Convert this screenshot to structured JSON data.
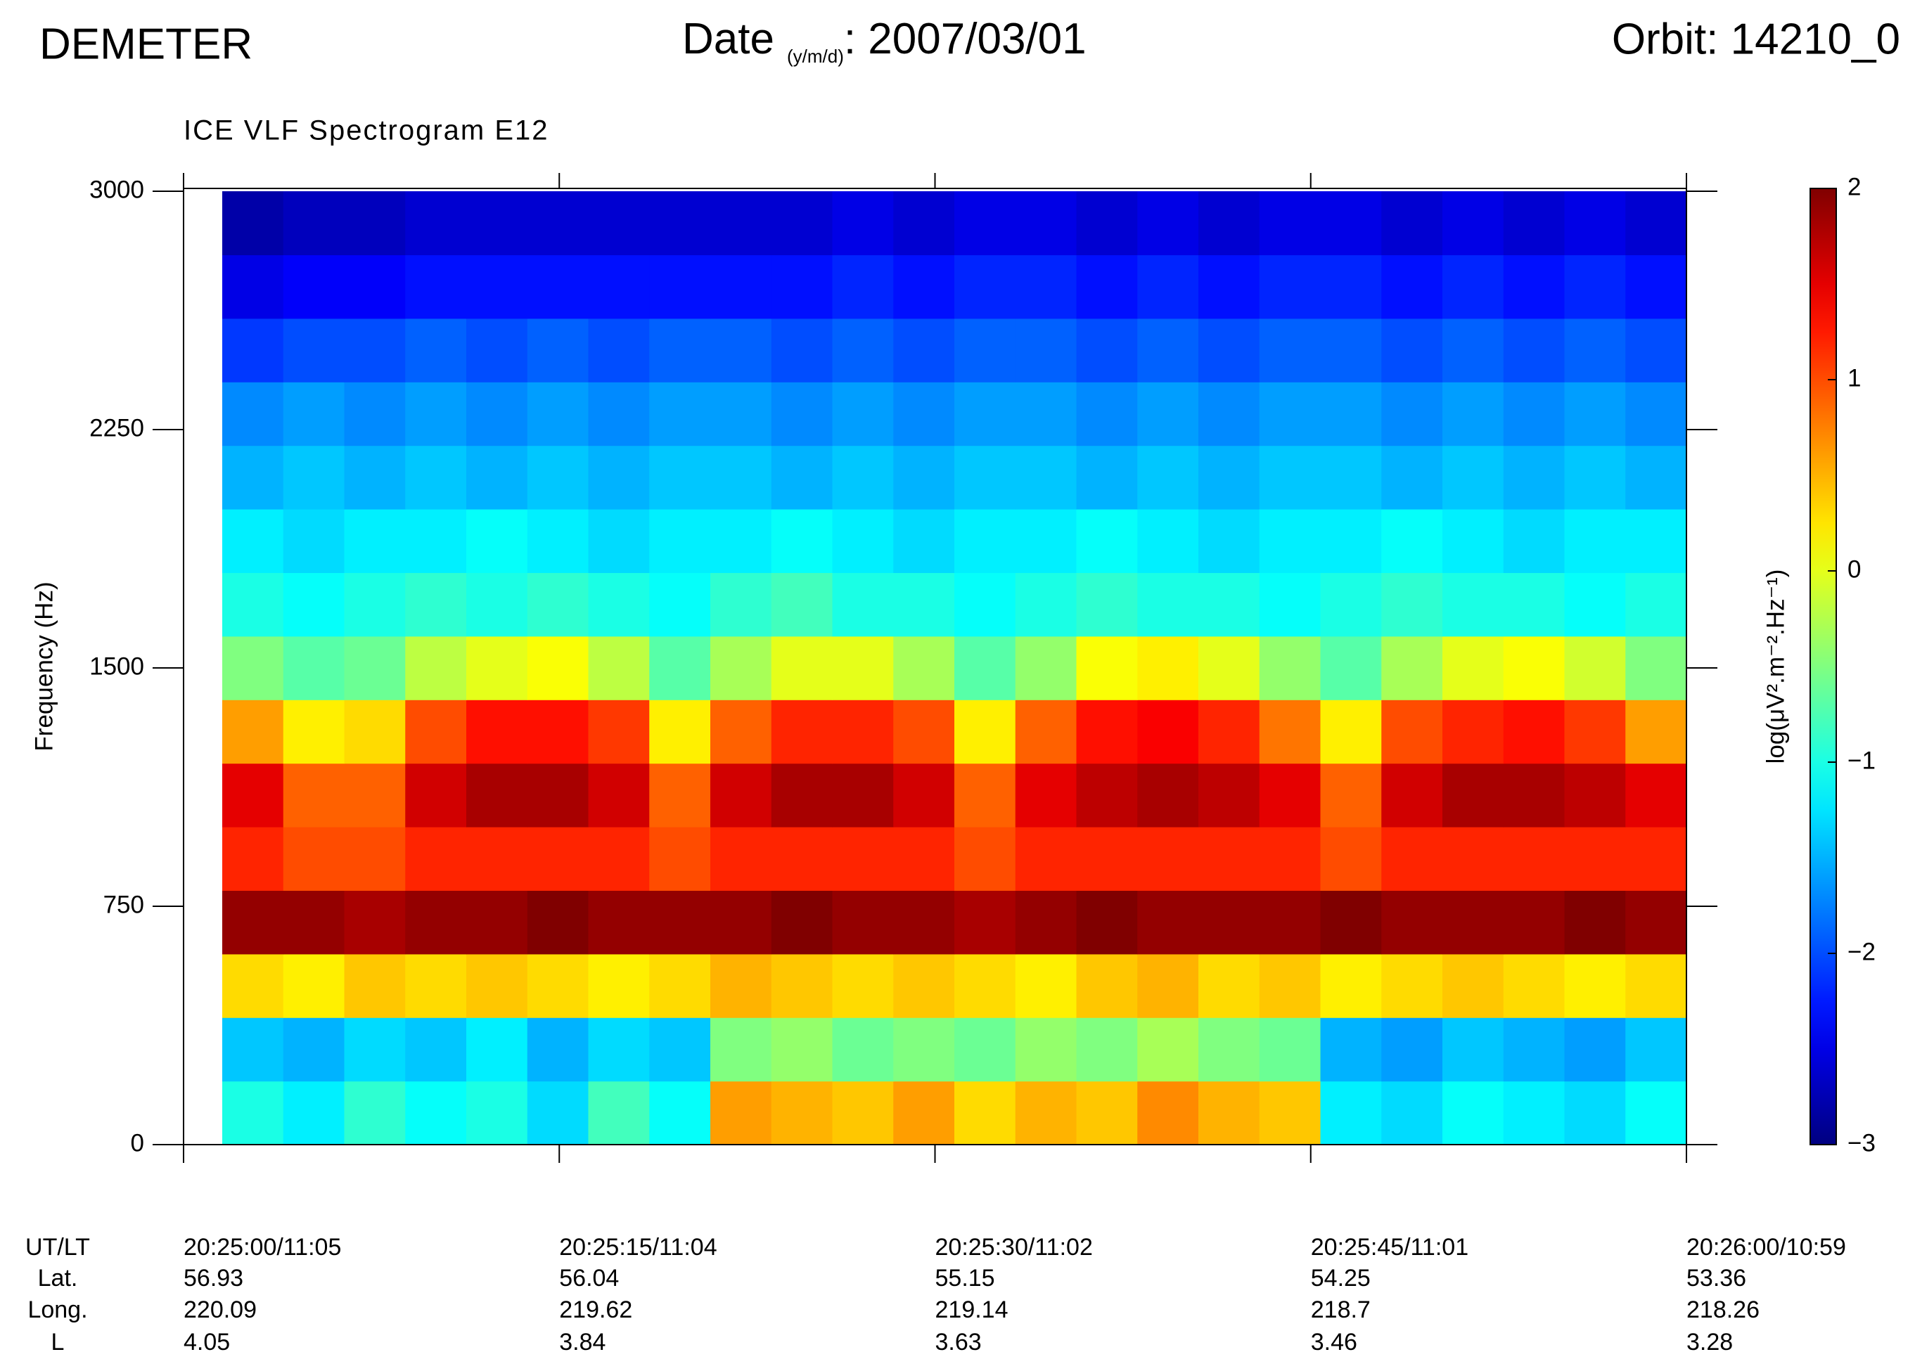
{
  "header": {
    "left": "DEMETER",
    "date_label": "Date",
    "date_units": "(y/m/d)",
    "date_value": ": 2007/03/01",
    "orbit": "Orbit: 14210_0"
  },
  "chart_data": {
    "type": "heatmap",
    "title": "ICE VLF Spectrogram E12",
    "ylabel": "Frequency (Hz)",
    "ylim": [
      0,
      3000
    ],
    "yticks": [
      0,
      750,
      1500,
      2250,
      3000
    ],
    "colorbar": {
      "label": "log(μV².m⁻².Hz⁻¹)",
      "lim": [
        -3,
        2
      ],
      "colormap": "jet",
      "ticks": [
        {
          "value": -3,
          "label": "−3"
        },
        {
          "value": -2,
          "label": "−2"
        },
        {
          "value": -1,
          "label": "−1"
        },
        0,
        1,
        2
      ]
    },
    "x_table": {
      "row_labels": [
        "UT/LT",
        "Lat.",
        "Long.",
        "L"
      ],
      "rows": [
        [
          "20:25:00/11:05",
          "20:25:15/11:04",
          "20:25:30/11:02",
          "20:25:45/11:01",
          "20:26:00/10:59"
        ],
        [
          56.93,
          56.04,
          55.15,
          54.25,
          53.36
        ],
        [
          220.09,
          219.62,
          219.14,
          218.7,
          218.26
        ],
        [
          4.05,
          3.84,
          3.63,
          3.46,
          3.28
        ]
      ]
    },
    "z": [
      [
        -1.0,
        -1.2,
        -0.9,
        -1.1,
        -1.0,
        -1.3,
        -0.8,
        -1.1,
        0.6,
        0.5,
        0.4,
        0.6,
        0.3,
        0.5,
        0.4,
        0.7,
        0.5,
        0.4,
        -1.2,
        -1.3,
        -1.1,
        -1.2,
        -1.3,
        -1.1
      ],
      [
        -1.4,
        -1.5,
        -1.3,
        -1.4,
        -1.2,
        -1.5,
        -1.3,
        -1.4,
        -0.5,
        -0.4,
        -0.6,
        -0.5,
        -0.6,
        -0.4,
        -0.5,
        -0.3,
        -0.5,
        -0.6,
        -1.5,
        -1.6,
        -1.4,
        -1.5,
        -1.6,
        -1.4
      ],
      [
        0.3,
        0.2,
        0.4,
        0.3,
        0.4,
        0.3,
        0.2,
        0.3,
        0.5,
        0.4,
        0.3,
        0.4,
        0.3,
        0.2,
        0.4,
        0.5,
        0.3,
        0.4,
        0.2,
        0.3,
        0.4,
        0.3,
        0.2,
        0.3
      ],
      [
        1.9,
        1.9,
        1.8,
        1.9,
        1.9,
        2.0,
        1.9,
        1.9,
        1.9,
        2.0,
        1.9,
        1.9,
        1.8,
        1.9,
        2.0,
        1.9,
        1.9,
        1.9,
        2.0,
        1.9,
        1.9,
        1.9,
        2.0,
        1.9
      ],
      [
        1.2,
        1.0,
        1.0,
        1.2,
        1.2,
        1.2,
        1.2,
        1.0,
        1.2,
        1.2,
        1.2,
        1.2,
        1.0,
        1.2,
        1.2,
        1.2,
        1.2,
        1.2,
        1.0,
        1.2,
        1.2,
        1.2,
        1.2,
        1.2
      ],
      [
        1.5,
        0.9,
        0.9,
        1.6,
        1.8,
        1.8,
        1.6,
        0.9,
        1.6,
        1.8,
        1.8,
        1.6,
        0.9,
        1.5,
        1.7,
        1.8,
        1.7,
        1.5,
        0.9,
        1.6,
        1.8,
        1.8,
        1.7,
        1.5
      ],
      [
        0.6,
        0.2,
        0.3,
        1.0,
        1.3,
        1.3,
        1.1,
        0.2,
        0.9,
        1.2,
        1.2,
        1.0,
        0.2,
        0.9,
        1.3,
        1.4,
        1.2,
        0.8,
        0.2,
        1.0,
        1.2,
        1.3,
        1.1,
        0.6
      ],
      [
        -0.5,
        -0.7,
        -0.6,
        -0.2,
        0.0,
        0.1,
        -0.2,
        -0.7,
        -0.3,
        0.0,
        0.0,
        -0.3,
        -0.7,
        -0.4,
        0.1,
        0.2,
        0.0,
        -0.4,
        -0.7,
        -0.3,
        0.0,
        0.1,
        -0.1,
        -0.5
      ],
      [
        -1.0,
        -1.1,
        -1.0,
        -0.9,
        -1.0,
        -0.9,
        -1.0,
        -1.1,
        -0.9,
        -0.8,
        -1.0,
        -1.0,
        -1.1,
        -1.0,
        -0.9,
        -1.0,
        -1.0,
        -1.1,
        -1.0,
        -0.9,
        -1.0,
        -1.0,
        -1.1,
        -1.0
      ],
      [
        -1.2,
        -1.3,
        -1.2,
        -1.2,
        -1.1,
        -1.2,
        -1.3,
        -1.2,
        -1.2,
        -1.1,
        -1.2,
        -1.3,
        -1.2,
        -1.2,
        -1.1,
        -1.2,
        -1.3,
        -1.2,
        -1.2,
        -1.1,
        -1.2,
        -1.3,
        -1.2,
        -1.2
      ],
      [
        -1.5,
        -1.4,
        -1.5,
        -1.4,
        -1.5,
        -1.4,
        -1.5,
        -1.4,
        -1.4,
        -1.5,
        -1.4,
        -1.5,
        -1.4,
        -1.4,
        -1.5,
        -1.4,
        -1.5,
        -1.4,
        -1.4,
        -1.5,
        -1.4,
        -1.5,
        -1.4,
        -1.5
      ],
      [
        -1.7,
        -1.6,
        -1.7,
        -1.6,
        -1.7,
        -1.6,
        -1.7,
        -1.6,
        -1.6,
        -1.7,
        -1.6,
        -1.7,
        -1.6,
        -1.6,
        -1.7,
        -1.6,
        -1.7,
        -1.6,
        -1.6,
        -1.7,
        -1.6,
        -1.7,
        -1.6,
        -1.7
      ],
      [
        -2.1,
        -2.0,
        -2.0,
        -1.9,
        -2.0,
        -1.9,
        -2.0,
        -1.9,
        -1.9,
        -2.0,
        -1.9,
        -2.0,
        -1.9,
        -1.9,
        -2.0,
        -1.9,
        -2.0,
        -1.9,
        -1.9,
        -2.0,
        -1.9,
        -2.0,
        -1.9,
        -2.0
      ],
      [
        -2.5,
        -2.4,
        -2.4,
        -2.3,
        -2.3,
        -2.3,
        -2.3,
        -2.3,
        -2.3,
        -2.3,
        -2.2,
        -2.3,
        -2.2,
        -2.2,
        -2.3,
        -2.2,
        -2.3,
        -2.2,
        -2.2,
        -2.3,
        -2.2,
        -2.3,
        -2.2,
        -2.3
      ],
      [
        -2.8,
        -2.7,
        -2.7,
        -2.6,
        -2.6,
        -2.6,
        -2.6,
        -2.6,
        -2.6,
        -2.6,
        -2.5,
        -2.6,
        -2.5,
        -2.5,
        -2.6,
        -2.5,
        -2.6,
        -2.5,
        -2.5,
        -2.6,
        -2.5,
        -2.6,
        -2.5,
        -2.6
      ]
    ]
  }
}
